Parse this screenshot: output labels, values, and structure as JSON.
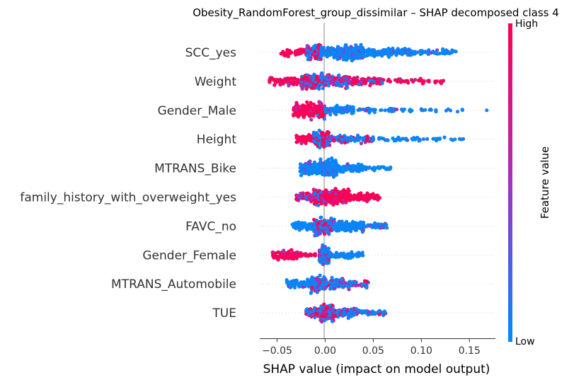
{
  "chart_data": {
    "type": "scatter",
    "title": "Obesity_RandomForest_group_dissimilar – SHAP decomposed class 4",
    "xlabel": "SHAP value (impact on model output)",
    "xlim": [
      -0.068,
      0.177
    ],
    "xticks": [
      -0.05,
      0.0,
      0.05,
      0.1,
      0.15
    ],
    "xtick_labels": [
      "−0.05",
      "0.00",
      "0.05",
      "0.10",
      "0.15"
    ],
    "features": [
      "SCC_yes",
      "Weight",
      "Gender_Male",
      "Height",
      "MTRANS_Bike",
      "family_history_with_overweight_yes",
      "FAVC_no",
      "Gender_Female",
      "MTRANS_Automobile",
      "TUE"
    ],
    "colorbar": {
      "label": "Feature value",
      "high_label": "High",
      "low_label": "Low",
      "low_color": "#008bfb",
      "mid_color": "#a233ba",
      "high_color": "#ff0052"
    },
    "series": [
      {
        "feature": "SCC_yes",
        "clusters": [
          {
            "lo": -0.046,
            "hi": -0.02,
            "n": 40,
            "mode": "high",
            "spread": 0.5
          },
          {
            "lo": -0.02,
            "hi": -0.004,
            "n": 120,
            "mode": "mixed",
            "spread": 1.0
          },
          {
            "lo": -0.004,
            "hi": 0.012,
            "n": 110,
            "mode": "low",
            "spread": 0.6
          },
          {
            "lo": 0.012,
            "hi": 0.04,
            "n": 200,
            "mode": "low",
            "spread": 1.0
          },
          {
            "lo": 0.04,
            "hi": 0.09,
            "n": 120,
            "mode": "low",
            "spread": 0.5
          },
          {
            "lo": 0.09,
            "hi": 0.137,
            "n": 50,
            "mode": "low",
            "spread": 0.35
          }
        ]
      },
      {
        "feature": "Weight",
        "clusters": [
          {
            "lo": -0.058,
            "hi": -0.025,
            "n": 60,
            "mode": "high",
            "spread": 0.5
          },
          {
            "lo": -0.025,
            "hi": 0.0,
            "n": 170,
            "mode": "mixed",
            "spread": 1.0
          },
          {
            "lo": 0.0,
            "hi": 0.025,
            "n": 120,
            "mode": "mixed",
            "spread": 0.8
          },
          {
            "lo": 0.025,
            "hi": 0.06,
            "n": 90,
            "mode": "mixedhigh",
            "spread": 0.5
          },
          {
            "lo": 0.06,
            "hi": 0.124,
            "n": 40,
            "mode": "high",
            "spread": 0.3
          }
        ]
      },
      {
        "feature": "Gender_Male",
        "clusters": [
          {
            "lo": -0.033,
            "hi": -0.008,
            "n": 150,
            "mode": "high",
            "spread": 1.0
          },
          {
            "lo": -0.008,
            "hi": 0.0,
            "n": 60,
            "mode": "mixedhigh",
            "spread": 1.0
          },
          {
            "lo": 0.0,
            "hi": 0.03,
            "n": 90,
            "mode": "low",
            "spread": 0.5
          },
          {
            "lo": 0.03,
            "hi": 0.07,
            "n": 30,
            "mode": "low",
            "spread": 0.3
          },
          {
            "lo": 0.07,
            "hi": 0.145,
            "n": 28,
            "mode": "low",
            "spread": 0.25
          },
          {
            "lo": 0.168,
            "hi": 0.168,
            "n": 1,
            "mode": "low",
            "spread": 0.0
          }
        ]
      },
      {
        "feature": "Height",
        "clusters": [
          {
            "lo": -0.03,
            "hi": -0.01,
            "n": 70,
            "mode": "high",
            "spread": 0.5
          },
          {
            "lo": -0.012,
            "hi": 0.005,
            "n": 170,
            "mode": "mixed",
            "spread": 1.0
          },
          {
            "lo": 0.005,
            "hi": 0.05,
            "n": 100,
            "mode": "mixedlow",
            "spread": 0.5
          },
          {
            "lo": 0.05,
            "hi": 0.1,
            "n": 35,
            "mode": "low",
            "spread": 0.3
          },
          {
            "lo": 0.1,
            "hi": 0.146,
            "n": 15,
            "mode": "low",
            "spread": 0.2
          }
        ]
      },
      {
        "feature": "MTRANS_Bike",
        "clusters": [
          {
            "lo": -0.026,
            "hi": -0.005,
            "n": 120,
            "mode": "low",
            "spread": 0.8
          },
          {
            "lo": -0.005,
            "hi": 0.012,
            "n": 190,
            "mode": "low",
            "spread": 1.0
          },
          {
            "lo": 0.012,
            "hi": 0.04,
            "n": 100,
            "mode": "low",
            "spread": 0.5
          },
          {
            "lo": 0.04,
            "hi": 0.068,
            "n": 25,
            "mode": "low",
            "spread": 0.3
          }
        ]
      },
      {
        "feature": "family_history_with_overweight_yes",
        "clusters": [
          {
            "lo": -0.03,
            "hi": -0.012,
            "n": 50,
            "mode": "mixedhigh",
            "spread": 0.5
          },
          {
            "lo": -0.012,
            "hi": 0.0,
            "n": 120,
            "mode": "mixedhigh",
            "spread": 1.0
          },
          {
            "lo": 0.0,
            "hi": 0.025,
            "n": 220,
            "mode": "high",
            "spread": 1.0
          },
          {
            "lo": 0.025,
            "hi": 0.057,
            "n": 90,
            "mode": "high",
            "spread": 0.5
          }
        ]
      },
      {
        "feature": "FAVC_no",
        "clusters": [
          {
            "lo": -0.034,
            "hi": -0.012,
            "n": 70,
            "mode": "low",
            "spread": 0.5
          },
          {
            "lo": -0.012,
            "hi": 0.01,
            "n": 200,
            "mode": "mixedlow",
            "spread": 1.0
          },
          {
            "lo": 0.01,
            "hi": 0.04,
            "n": 140,
            "mode": "low",
            "spread": 0.7
          },
          {
            "lo": 0.04,
            "hi": 0.065,
            "n": 40,
            "mode": "low",
            "spread": 0.4
          }
        ]
      },
      {
        "feature": "Gender_Female",
        "clusters": [
          {
            "lo": -0.055,
            "hi": -0.025,
            "n": 90,
            "mode": "high",
            "spread": 0.6
          },
          {
            "lo": -0.025,
            "hi": -0.01,
            "n": 20,
            "mode": "high",
            "spread": 0.2
          },
          {
            "lo": -0.006,
            "hi": 0.004,
            "n": 200,
            "mode": "mixedlow",
            "spread": 1.0
          },
          {
            "lo": 0.004,
            "hi": 0.04,
            "n": 70,
            "mode": "low",
            "spread": 0.4
          }
        ]
      },
      {
        "feature": "MTRANS_Automobile",
        "clusters": [
          {
            "lo": -0.04,
            "hi": -0.015,
            "n": 70,
            "mode": "low",
            "spread": 0.6
          },
          {
            "lo": -0.015,
            "hi": 0.0,
            "n": 130,
            "mode": "mixedlow",
            "spread": 1.0
          },
          {
            "lo": 0.0,
            "hi": 0.025,
            "n": 90,
            "mode": "mixedlow",
            "spread": 0.8
          },
          {
            "lo": 0.025,
            "hi": 0.045,
            "n": 30,
            "mode": "mixedlow",
            "spread": 0.4
          }
        ]
      },
      {
        "feature": "TUE",
        "clusters": [
          {
            "lo": -0.02,
            "hi": -0.005,
            "n": 60,
            "mode": "mixed",
            "spread": 0.6
          },
          {
            "lo": -0.005,
            "hi": 0.01,
            "n": 160,
            "mode": "mixed",
            "spread": 1.0
          },
          {
            "lo": 0.01,
            "hi": 0.035,
            "n": 110,
            "mode": "mixedlow",
            "spread": 0.6
          },
          {
            "lo": 0.035,
            "hi": 0.063,
            "n": 45,
            "mode": "mixedlow",
            "spread": 0.35
          }
        ]
      }
    ]
  }
}
